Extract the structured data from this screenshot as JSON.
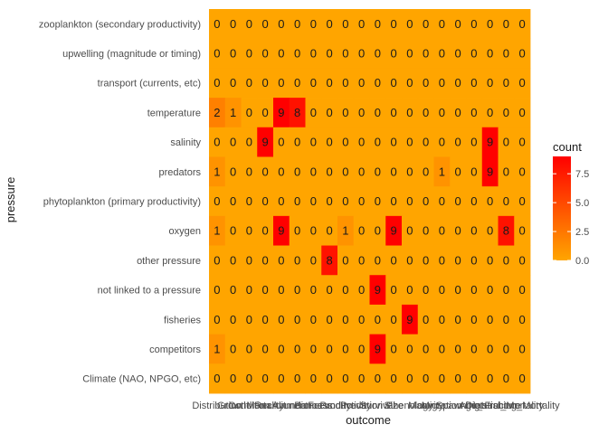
{
  "chart_data": {
    "type": "heatmap",
    "xlabel": "outcome",
    "ylabel": "pressure",
    "legend": {
      "title": "count",
      "ticks": [
        "2.5",
        "5.0",
        "7.5"
      ],
      "min_label": "0.0",
      "range": [
        0,
        9
      ],
      "low_color": "#FFA500",
      "high_color": "#FF0000",
      "position": "right"
    },
    "x_tick_labels_overlapping": [
      "Distribution",
      "Growth",
      "Condition",
      "Mortality",
      "Recruitment",
      "Abundance",
      "Biomass",
      "Fecundity",
      "Productivity",
      "Predation",
      "Survival",
      "Size",
      "Phenology",
      "Maturity",
      "Migration",
      "Spawning",
      "Diet",
      "Age_structure",
      "Natural_Mortality",
      "Fishing_Mortality"
    ],
    "rows": [
      "zooplankton (secondary productivity)",
      "upwelling (magnitude or timing)",
      "transport (currents, etc)",
      "temperature",
      "salinity",
      "predators",
      "phytoplankton (primary productivity)",
      "oxygen",
      "other pressure",
      "not linked to a pressure",
      "fisheries",
      "competitors",
      "Climate (NAO, NPGO, etc)"
    ],
    "values": [
      [
        0,
        0,
        0,
        0,
        0,
        0,
        0,
        0,
        0,
        0,
        0,
        0,
        0,
        0,
        0,
        0,
        0,
        0,
        0,
        0
      ],
      [
        0,
        0,
        0,
        0,
        0,
        0,
        0,
        0,
        0,
        0,
        0,
        0,
        0,
        0,
        0,
        0,
        0,
        0,
        0,
        0
      ],
      [
        0,
        0,
        0,
        0,
        0,
        0,
        0,
        0,
        0,
        0,
        0,
        0,
        0,
        0,
        0,
        0,
        0,
        0,
        0,
        0
      ],
      [
        2,
        1,
        0,
        0,
        9,
        8,
        0,
        0,
        0,
        0,
        0,
        0,
        0,
        0,
        0,
        0,
        0,
        0,
        0,
        0
      ],
      [
        0,
        0,
        0,
        9,
        0,
        0,
        0,
        0,
        0,
        0,
        0,
        0,
        0,
        0,
        0,
        0,
        0,
        9,
        0,
        0
      ],
      [
        1,
        0,
        0,
        0,
        0,
        0,
        0,
        0,
        0,
        0,
        0,
        0,
        0,
        0,
        1,
        0,
        0,
        9,
        0,
        0
      ],
      [
        0,
        0,
        0,
        0,
        0,
        0,
        0,
        0,
        0,
        0,
        0,
        0,
        0,
        0,
        0,
        0,
        0,
        0,
        0,
        0
      ],
      [
        1,
        0,
        0,
        0,
        9,
        0,
        0,
        0,
        1,
        0,
        0,
        9,
        0,
        0,
        0,
        0,
        0,
        0,
        8,
        0
      ],
      [
        0,
        0,
        0,
        0,
        0,
        0,
        0,
        8,
        0,
        0,
        0,
        0,
        0,
        0,
        0,
        0,
        0,
        0,
        0,
        0
      ],
      [
        0,
        0,
        0,
        0,
        0,
        0,
        0,
        0,
        0,
        0,
        9,
        0,
        0,
        0,
        0,
        0,
        0,
        0,
        0,
        0
      ],
      [
        0,
        0,
        0,
        0,
        0,
        0,
        0,
        0,
        0,
        0,
        0,
        0,
        9,
        0,
        0,
        0,
        0,
        0,
        0,
        0
      ],
      [
        1,
        0,
        0,
        0,
        0,
        0,
        0,
        0,
        0,
        0,
        9,
        0,
        0,
        0,
        0,
        0,
        0,
        0,
        0,
        0
      ],
      [
        0,
        0,
        0,
        0,
        0,
        0,
        0,
        0,
        0,
        0,
        0,
        0,
        0,
        0,
        0,
        0,
        0,
        0,
        0,
        0
      ]
    ]
  }
}
